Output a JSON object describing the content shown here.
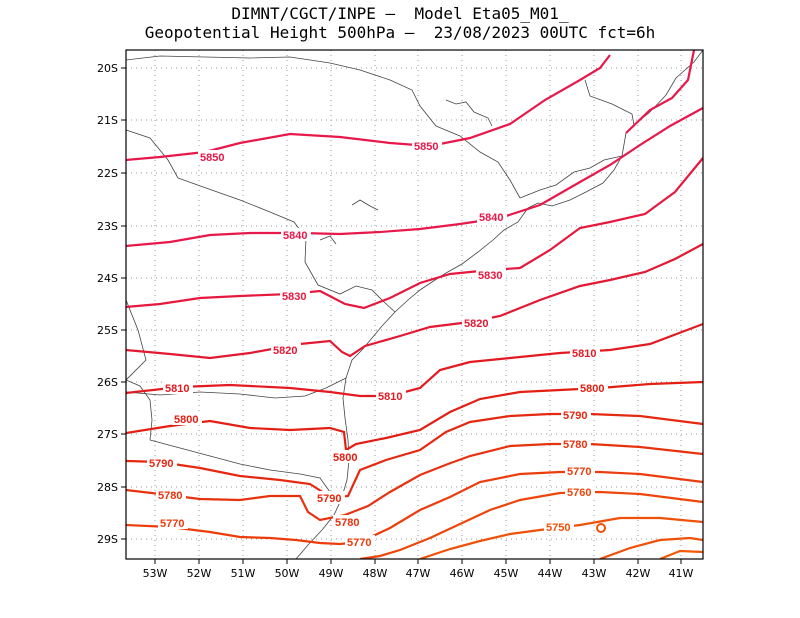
{
  "title": {
    "line1": "DIMNT/CGCT/INPE —  Model Eta05_M01_",
    "line2": "Geopotential Height 500hPa —  23/08/2023 00UTC fct=6h"
  },
  "axes": {
    "lat_labels": [
      "20S",
      "21S",
      "22S",
      "23S",
      "24S",
      "25S",
      "26S",
      "27S",
      "28S",
      "29S"
    ],
    "lon_labels": [
      "53W",
      "52W",
      "51W",
      "50W",
      "49W",
      "48W",
      "47W",
      "46W",
      "45W",
      "44W",
      "43W",
      "42W",
      "41W"
    ]
  },
  "contours": [
    {
      "value": 5850,
      "label": "5850",
      "color": "#e8184a"
    },
    {
      "value": 5840,
      "label": "5840",
      "color": "#e8184a"
    },
    {
      "value": 5830,
      "label": "5830",
      "color": "#e6183e"
    },
    {
      "value": 5820,
      "label": "5820",
      "color": "#e31832"
    },
    {
      "value": 5810,
      "label": "5810",
      "color": "#e31a22"
    },
    {
      "value": 5800,
      "label": "5800",
      "color": "#e31e12"
    },
    {
      "value": 5790,
      "label": "5790",
      "color": "#e52810"
    },
    {
      "value": 5780,
      "label": "5780",
      "color": "#e8320e"
    },
    {
      "value": 5770,
      "label": "5770",
      "color": "#ec3c0c"
    },
    {
      "value": 5760,
      "label": "5760",
      "color": "#ee460a"
    },
    {
      "value": 5750,
      "label": "5750",
      "color": "#f05008"
    }
  ],
  "colors": {
    "frame": "#000000",
    "grid": "#999999",
    "coast": "#444444"
  }
}
